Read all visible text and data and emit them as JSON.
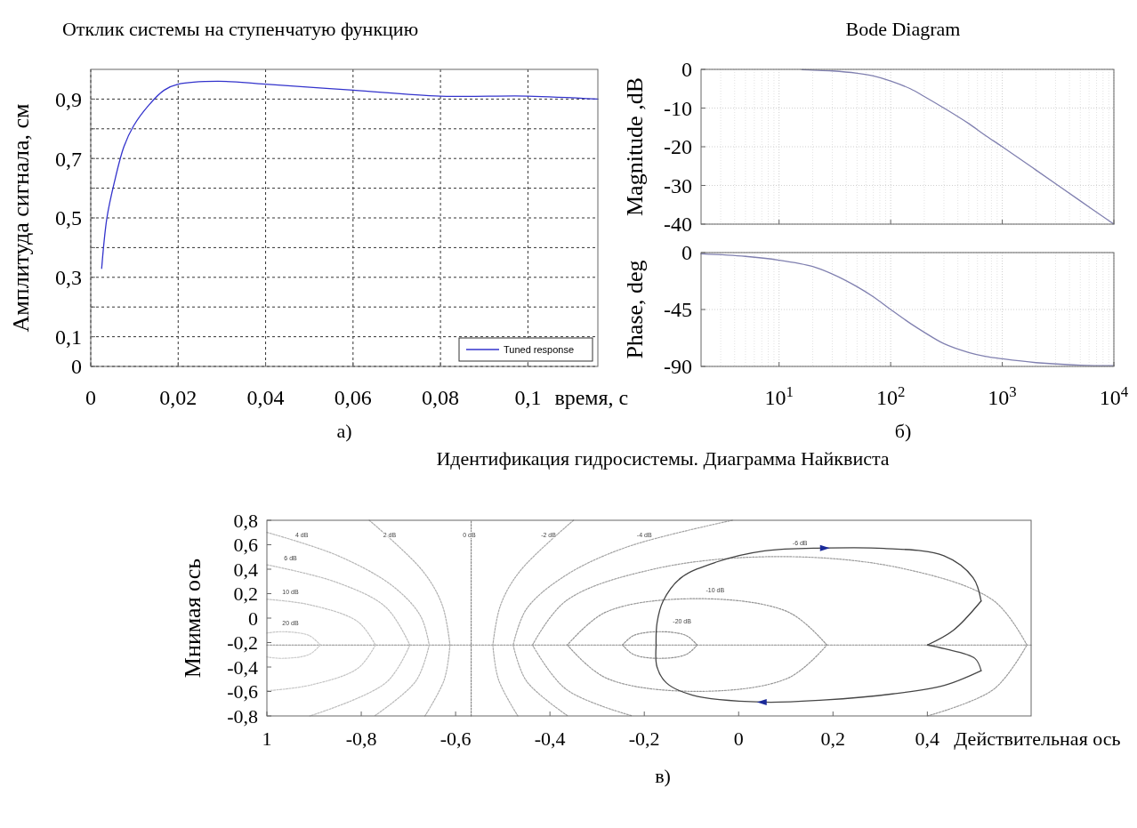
{
  "chart_data": [
    {
      "type": "line",
      "title": "Отклик системы на ступенчатую функцию",
      "xlabel": "время, с",
      "ylabel": "Амплитуда сигнала, см",
      "annotations": [
        "а)"
      ],
      "xlim": [
        0,
        0.116
      ],
      "ylim": [
        0,
        1
      ],
      "xticks": [
        0,
        {
          "value": 0.02,
          "label": "0,02"
        },
        {
          "value": 0.04,
          "label": "0,04"
        },
        {
          "value": 0.06,
          "label": "0,06"
        },
        {
          "value": 0.08,
          "label": "0,08"
        },
        {
          "value": 0.1,
          "label": "0,1"
        }
      ],
      "yticks": [
        0,
        {
          "value": 0.1,
          "label": "0,1"
        },
        {
          "value": 0.2,
          "label": null
        },
        {
          "value": 0.3,
          "label": "0,3"
        },
        {
          "value": 0.4,
          "label": null
        },
        {
          "value": 0.5,
          "label": "0,5"
        },
        {
          "value": 0.6,
          "label": null
        },
        {
          "value": 0.7,
          "label": "0,7"
        },
        {
          "value": 0.8,
          "label": null
        },
        {
          "value": 0.9,
          "label": "0,9"
        }
      ],
      "grid": true,
      "legend": "bottom right",
      "series": [
        {
          "name": "Tuned response",
          "color": "#3333cc",
          "x": [
            0.0025,
            0.0037,
            0.0054,
            0.0076,
            0.0098,
            0.0133,
            0.0168,
            0.02,
            0.029,
            0.04,
            0.06,
            0.08,
            0.1,
            0.116
          ],
          "values": [
            0.33,
            0.5,
            0.62,
            0.74,
            0.81,
            0.88,
            0.93,
            0.95,
            0.96,
            0.95,
            0.93,
            0.91,
            0.91,
            0.9
          ]
        }
      ]
    },
    {
      "type": "line",
      "title": "Bode Diagram",
      "ylabel": "Magnitude ,dB",
      "log": "x",
      "xlim": [
        2,
        10000
      ],
      "ylim": [
        -40,
        0
      ],
      "xticks": [
        10,
        100,
        1000,
        10000
      ],
      "yticks": [
        0,
        -10,
        -20,
        -30,
        -40
      ],
      "grid": true,
      "tick_labels": "y",
      "series": [
        {
          "color": "#8080b0",
          "x": [
            16,
            20,
            30,
            50,
            70,
            100,
            150,
            200,
            300,
            500,
            700,
            1000,
            2000,
            5000,
            10000
          ],
          "values": [
            -0.1,
            -0.2,
            -0.4,
            -1,
            -1.7,
            -3,
            -5,
            -7,
            -10,
            -14,
            -17,
            -20,
            -26,
            -34,
            -40
          ]
        }
      ]
    },
    {
      "type": "line",
      "ylabel": "Phase, deg",
      "annotations": [
        "б)"
      ],
      "log": "x",
      "xlim": [
        2,
        10000
      ],
      "ylim": [
        -90,
        0
      ],
      "xticks": [
        {
          "value": 10,
          "label": "10$^{1}$"
        },
        {
          "value": 100,
          "label": "10$^{2}$"
        },
        {
          "value": 1000,
          "label": "10$^{3}$"
        },
        {
          "value": 10000,
          "label": "10$^{4}$"
        }
      ],
      "yticks": [
        0,
        -45,
        -90
      ],
      "grid": true,
      "series": [
        {
          "color": "#8080b0",
          "x": [
            2,
            5,
            10,
            20,
            30,
            50,
            70,
            100,
            150,
            200,
            300,
            500,
            700,
            1000,
            2000,
            5000,
            10000
          ],
          "values": [
            -1,
            -3,
            -6,
            -11,
            -17,
            -27,
            -35,
            -45,
            -56,
            -63,
            -72,
            -79,
            -82,
            -84,
            -87,
            -89,
            -89.4
          ]
        }
      ]
    },
    {
      "type": "line",
      "title": "Идентификация гидросистемы. Диаграмма Найквиста",
      "xlabel": "Действительная ось",
      "ylabel": "Мнимая ось",
      "xlim": [
        -1,
        0.62
      ],
      "ylim": [
        -0.8,
        0.8
      ],
      "xticks": [
        {
          "value": -1,
          "label": "1"
        },
        {
          "value": -0.8,
          "label": "-0,8"
        },
        {
          "value": -0.6,
          "label": "-0,6"
        },
        {
          "value": -0.4,
          "label": "-0,4"
        },
        {
          "value": -0.2,
          "label": "-0,2"
        },
        0,
        {
          "value": 0.2,
          "label": "0,2"
        },
        {
          "value": 0.4,
          "label": "0,4"
        }
      ],
      "yticks": [
        {
          "value": 0.8,
          "label": "0,8"
        },
        {
          "value": 0.6,
          "label": "0,6"
        },
        {
          "value": 0.4,
          "label": "0,4"
        },
        {
          "value": 0.2,
          "label": "0,2"
        },
        0,
        {
          "value": -0.2,
          "label": "-0,2"
        },
        {
          "value": -0.4,
          "label": "-0,4"
        },
        {
          "value": -0.6,
          "label": "-0,6"
        },
        {
          "value": -0.8,
          "label": "-0,8"
        }
      ],
      "annotations": [
        "в)",
        "4 dB",
        "2 dB",
        "0 dB",
        "-2 dB",
        "-4 dB",
        "-6 dB",
        "6 dB",
        "10 dB",
        "-10 dB",
        "20 dB",
        "-20 dB"
      ],
      "series": [
        {
          "color": "#888888",
          "line_style": "dotted",
          "x": [
            -0.567,
            -0.567
          ],
          "values": [
            -0.8,
            0.8
          ]
        },
        {
          "color": "#8b8b8b",
          "line_style": "dotted",
          "x": [
            -1,
            0.62
          ],
          "values": [
            -0.22,
            -0.22
          ]
        },
        {
          "color": "#8e8e8e",
          "line_style": "dotted",
          "x": [
            -0.088,
            -0.111,
            -0.167,
            -0.223,
            -0.246
          ],
          "values": [
            -0.22,
            -0.143,
            -0.111,
            -0.143,
            -0.22
          ]
        },
        {
          "color": "#919191",
          "line_style": "dotted",
          "x": [
            -0.246,
            -0.223,
            -0.167,
            -0.111,
            -0.088
          ],
          "values": [
            -0.22,
            -0.297,
            -0.329,
            -0.297,
            -0.22
          ]
        },
        {
          "color": "#949494",
          "line_style": "dotted",
          "x": [
            0.187,
            0.106,
            -0.088,
            -0.282,
            -0.363
          ],
          "values": [
            -0.22,
            0.048,
            0.159,
            0.048,
            -0.22
          ]
        },
        {
          "color": "#979797",
          "line_style": "dotted",
          "x": [
            -0.363,
            -0.282,
            -0.088,
            0.106,
            0.187
          ],
          "values": [
            -0.22,
            -0.488,
            -0.599,
            -0.488,
            -0.22
          ]
        },
        {
          "color": "#9a9a9a",
          "line_style": "dotted",
          "x": [
            0.4,
            0.541,
            0.611
          ],
          "values": [
            -0.8,
            -0.581,
            -0.22
          ]
        },
        {
          "color": "#9d9d9d",
          "line_style": "dotted",
          "x": [
            0.611,
            0.541,
            0.349,
            0.087,
            -0.175,
            -0.366,
            -0.437
          ],
          "values": [
            -0.22,
            0.141,
            0.405,
            0.503,
            0.405,
            0.141,
            -0.22
          ]
        },
        {
          "color": "#a0a0a0",
          "line_style": "dotted",
          "x": [
            -0.437,
            -0.366,
            -0.225
          ],
          "values": [
            -0.22,
            -0.581,
            -0.8
          ]
        },
        {
          "color": "#a3a3a3",
          "line_style": "dotted",
          "x": [
            -0.013,
            -0.238,
            -0.368,
            -0.45,
            -0.478
          ],
          "values": [
            0.8,
            0.58,
            0.346,
            0.073,
            -0.22
          ]
        },
        {
          "color": "#a6a6a6",
          "line_style": "dotted",
          "x": [
            -0.478,
            -0.45,
            -0.362
          ],
          "values": [
            -0.22,
            -0.513,
            -0.8
          ]
        },
        {
          "color": "#a9a9a9",
          "line_style": "dotted",
          "x": [
            -0.35,
            -0.464,
            -0.505,
            -0.521
          ],
          "values": [
            0.8,
            0.382,
            0.103,
            -0.22
          ]
        },
        {
          "color": "#acacac",
          "line_style": "dotted",
          "x": [
            -0.521,
            -0.509,
            -0.468
          ],
          "values": [
            -0.22,
            -0.503,
            -0.8
          ]
        },
        {
          "color": "#afafaf",
          "line_style": "dotted",
          "x": [
            -0.783,
            -0.669,
            -0.628,
            -0.612
          ],
          "values": [
            0.8,
            0.382,
            0.103,
            -0.22
          ]
        },
        {
          "color": "#b2b2b2",
          "line_style": "dotted",
          "x": [
            -0.612,
            -0.624,
            -0.665
          ],
          "values": [
            -0.22,
            -0.503,
            -0.8
          ]
        },
        {
          "color": "#b5b5b5",
          "line_style": "dotted",
          "x": [
            -1,
            -0.848,
            -0.732,
            -0.674,
            -0.656
          ],
          "values": [
            0.701,
            0.508,
            0.258,
            0.015,
            -0.22
          ]
        },
        {
          "color": "#b8b8b8",
          "line_style": "dotted",
          "x": [
            -0.656,
            -0.684,
            -0.772
          ],
          "values": [
            -0.22,
            -0.513,
            -0.8
          ]
        },
        {
          "color": "#bbbbbb",
          "line_style": "dotted",
          "x": [
            -1,
            -0.851,
            -0.747,
            -0.697
          ],
          "values": [
            0.436,
            0.291,
            0.086,
            -0.22
          ]
        },
        {
          "color": "#bebebe",
          "line_style": "dotted",
          "x": [
            -0.697,
            -0.747,
            -0.909
          ],
          "values": [
            -0.22,
            -0.526,
            -0.8
          ]
        },
        {
          "color": "#c1c1c1",
          "line_style": "dotted",
          "x": [
            -1,
            -0.908,
            -0.807,
            -0.77
          ],
          "values": [
            0.154,
            0.108,
            -0.03,
            -0.22
          ]
        },
        {
          "color": "#c4c4c4",
          "line_style": "dotted",
          "x": [
            -0.77,
            -0.807,
            -0.908,
            -1
          ],
          "values": [
            -0.22,
            -0.41,
            -0.548,
            -0.594
          ]
        },
        {
          "color": "#c7c7c7",
          "line_style": "dotted",
          "x": [
            -1,
            -0.966,
            -0.91,
            -0.887
          ],
          "values": [
            -0.122,
            -0.111,
            -0.143,
            -0.22
          ]
        },
        {
          "color": "#cacaca",
          "line_style": "dotted",
          "x": [
            -0.887,
            -0.91,
            -0.966,
            -1
          ],
          "values": [
            -0.22,
            -0.297,
            -0.329,
            -0.318
          ]
        },
        {
          "color": "#404040",
          "x": [
            0.4,
            0.455,
            0.514
          ],
          "values": [
            -0.22,
            -0.1,
            0.14
          ]
        },
        {
          "color": "#434343",
          "x": [
            0.514,
            0.497,
            0.435,
            0.308,
            0.182,
            0.055,
            -0.046,
            -0.122,
            -0.16,
            -0.173,
            -0.175
          ],
          "values": [
            0.14,
            0.33,
            0.51,
            0.57,
            0.573,
            0.55,
            0.46,
            0.33,
            0.14,
            -0.04,
            -0.23
          ]
        },
        {
          "color": "#464646",
          "x": [
            -0.175,
            -0.173,
            -0.153,
            -0.098,
            0.05,
            0.179,
            0.326,
            0.436,
            0.514
          ],
          "values": [
            -0.23,
            -0.4,
            -0.53,
            -0.63,
            -0.687,
            -0.67,
            -0.62,
            -0.55,
            -0.43
          ]
        },
        {
          "color": "#494949",
          "x": [
            0.514,
            0.501,
            0.436,
            0.4
          ],
          "values": [
            -0.43,
            -0.33,
            -0.25,
            -0.22
          ]
        }
      ]
    }
  ]
}
